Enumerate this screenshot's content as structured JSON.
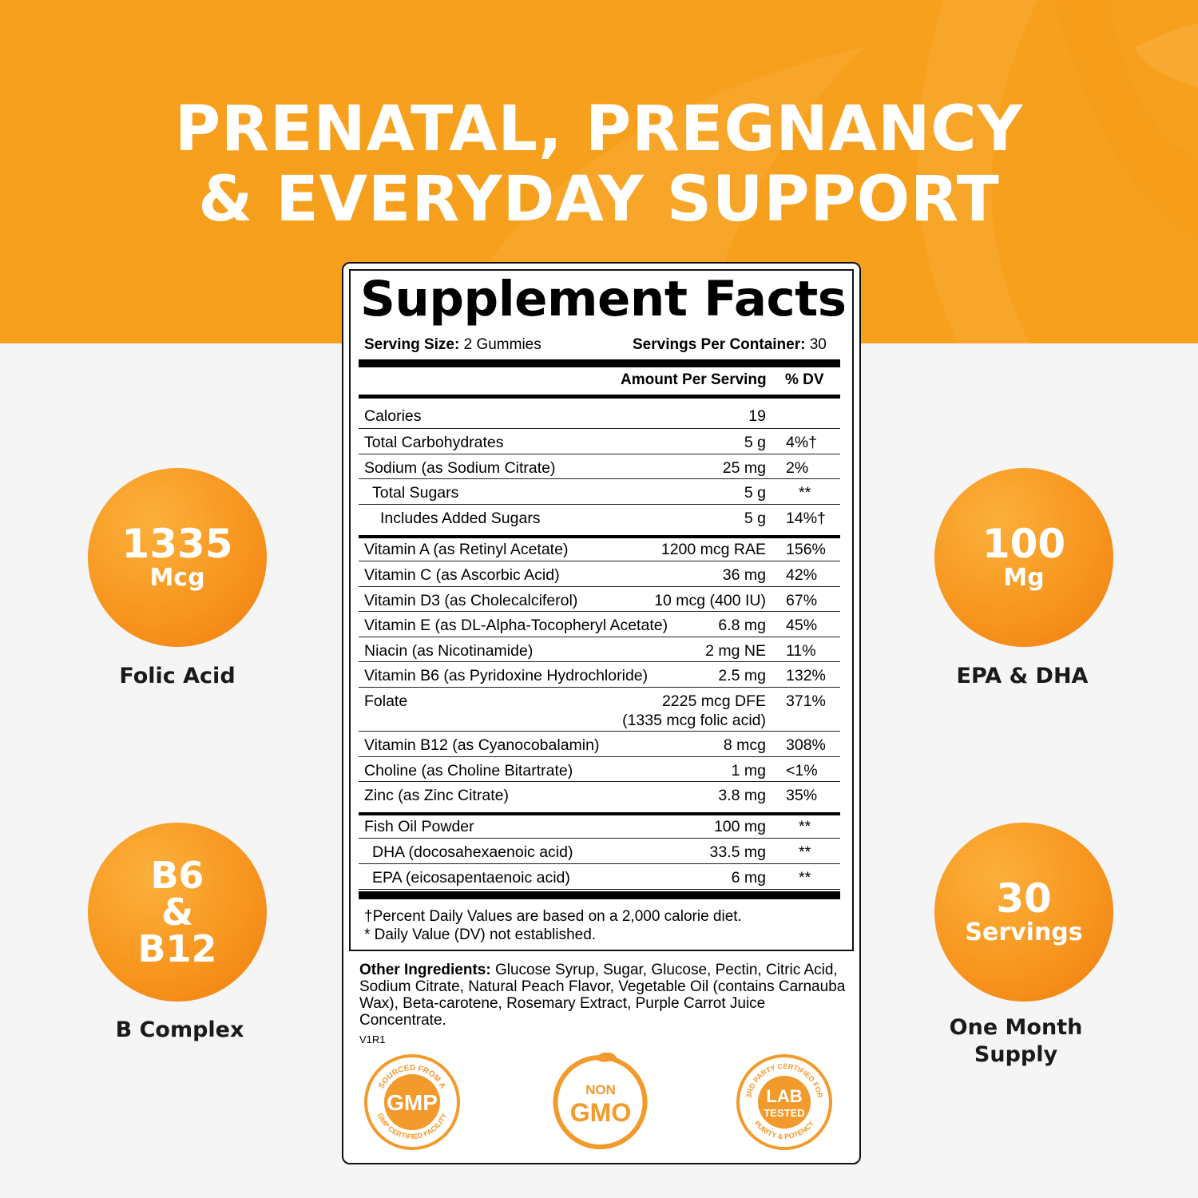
{
  "headline": {
    "line1": "PRENATAL, PREGNANCY",
    "line2": "& EVERYDAY SUPPORT"
  },
  "badges": {
    "folic": {
      "big": "1335",
      "small": "Mcg",
      "caption": "Folic Acid"
    },
    "b": {
      "l1": "B6",
      "l2": "&",
      "l3": "B12",
      "caption": "B Complex"
    },
    "epa": {
      "big": "100",
      "small": "Mg",
      "caption": "EPA & DHA"
    },
    "servings": {
      "big": "30",
      "small": "Servings",
      "caption_l1": "One Month",
      "caption_l2": "Supply"
    }
  },
  "facts": {
    "title": "Supplement Facts",
    "serving_size_label": "Serving Size:",
    "serving_size_value": "2 Gummies",
    "servings_per_label": "Servings Per Container:",
    "servings_per_value": "30",
    "amount_header": "Amount Per Serving",
    "dv_header": "% DV",
    "rows": [
      {
        "name": "Calories",
        "amount": "19",
        "dv": ""
      },
      {
        "name": "Total Carbohydrates",
        "amount": "5 g",
        "dv": "4%†"
      },
      {
        "name": "Sodium (as Sodium Citrate)",
        "amount": "25 mg",
        "dv": "2%"
      },
      {
        "name": "Total Sugars",
        "amount": "5 g",
        "dv": "**"
      },
      {
        "name": "Includes Added Sugars",
        "amount": "5 g",
        "dv": "14%†"
      },
      {
        "name": "Vitamin A (as Retinyl Acetate)",
        "amount": "1200 mcg RAE",
        "dv": "156%"
      },
      {
        "name": "Vitamin C (as Ascorbic Acid)",
        "amount": "36 mg",
        "dv": "42%"
      },
      {
        "name": "Vitamin D3 (as Cholecalciferol)",
        "amount": "10 mcg (400 IU)",
        "dv": "67%"
      },
      {
        "name": "Vitamin E (as DL-Alpha-Tocopheryl Acetate)",
        "amount": "6.8 mg",
        "dv": "45%"
      },
      {
        "name": "Niacin (as Nicotinamide)",
        "amount": "2 mg NE",
        "dv": "11%"
      },
      {
        "name": "Vitamin B6 (as Pyridoxine Hydrochloride)",
        "amount": "2.5 mg",
        "dv": "132%"
      },
      {
        "name": "Folate",
        "amount": "2225 mcg DFE",
        "amount2": "(1335 mcg folic acid)",
        "dv": "371%"
      },
      {
        "name": "Vitamin B12 (as Cyanocobalamin)",
        "amount": "8 mcg",
        "dv": "308%"
      },
      {
        "name": "Choline (as Choline Bitartrate)",
        "amount": "1 mg",
        "dv": "<1%"
      },
      {
        "name": "Zinc (as Zinc Citrate)",
        "amount": "3.8 mg",
        "dv": "35%"
      },
      {
        "name": "Fish Oil Powder",
        "amount": "100 mg",
        "dv": "**"
      },
      {
        "name": "DHA (docosahexaenoic acid)",
        "amount": "33.5 mg",
        "dv": "**"
      },
      {
        "name": "EPA (eicosapentaenoic acid)",
        "amount": "6 mg",
        "dv": "**"
      }
    ],
    "footnote1": "†Percent Daily Values are based on a 2,000 calorie diet.",
    "footnote2": "* Daily Value (DV) not established.",
    "other_label": "Other Ingredients:",
    "other_l1": " Glucose Syrup, Sugar, Glucose, Pectin, Citric Acid,",
    "other_l2": "Sodium Citrate, Natural Peach Flavor, Vegetable Oil (contains Carnauba",
    "other_l3": "Wax), Beta-carotene, Rosemary Extract, Purple Carrot Juice",
    "other_l4": "Concentrate.",
    "code": "V1R1"
  },
  "seals": {
    "gmp": {
      "center": "GMP",
      "ring_top": "SOURCED FROM A",
      "ring_bottom": "GMP CERTIFIED FACILITY"
    },
    "nongmo": {
      "top": "NON",
      "bottom": "GMO"
    },
    "lab": {
      "center1": "LAB",
      "center2": "TESTED",
      "ring_top": "3RD PARTY CERTIFIED FOR",
      "ring_bottom": "PURITY & POTENCY"
    }
  },
  "colors": {
    "orange": "#f7a01e",
    "badge": "#f7941d",
    "seal": "#f39a2c"
  }
}
